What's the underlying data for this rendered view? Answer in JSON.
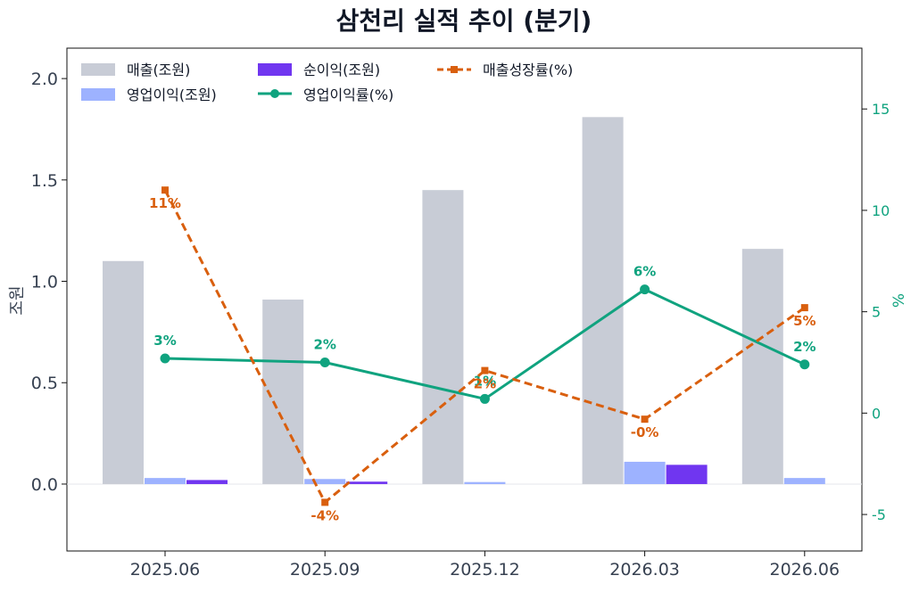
{
  "chart_data": {
    "type": "bar",
    "title": "삼천리 실적 추이 (분기)",
    "categories": [
      "2025.06",
      "2025.09",
      "2025.12",
      "2026.03",
      "2026.06"
    ],
    "ylabel": "조원",
    "ylabel_right": "%",
    "ylim": [
      -0.33,
      2.15
    ],
    "ylim_right": [
      -6.8,
      18.0
    ],
    "yticks": [
      "0.0",
      "0.5",
      "1.0",
      "1.5",
      "2.0"
    ],
    "yticks_right": [
      "-5",
      "0",
      "5",
      "10",
      "15"
    ],
    "legend_position": "top-left",
    "grid": false,
    "colors": {
      "revenue": "#c8ccd6",
      "operating_profit": "#9db2ff",
      "net_income": "#7036f0",
      "operating_margin": "#10a37f",
      "revenue_growth": "#d95f0e"
    },
    "series": [
      {
        "name": "매출(조원)",
        "type": "bar",
        "axis": "left",
        "values": [
          1.1,
          0.91,
          1.45,
          1.81,
          1.16
        ]
      },
      {
        "name": "영업이익(조원)",
        "type": "bar",
        "axis": "left",
        "values": [
          0.03,
          0.025,
          0.01,
          0.11,
          0.03
        ]
      },
      {
        "name": "순이익(조원)",
        "type": "bar",
        "axis": "left",
        "values": [
          0.02,
          0.012,
          0.0,
          0.095,
          0.0
        ]
      },
      {
        "name": "영업이익률(%)",
        "type": "line",
        "axis": "right",
        "values": [
          2.7,
          2.5,
          0.7,
          6.1,
          2.4
        ],
        "labels": [
          "3%",
          "2%",
          "1%",
          "6%",
          "2%"
        ]
      },
      {
        "name": "매출성장률(%)",
        "type": "line",
        "axis": "right",
        "style": "dashed",
        "values": [
          11.0,
          -4.4,
          2.1,
          -0.3,
          5.2
        ],
        "labels": [
          "11%",
          "-4%",
          "2%",
          "-0%",
          "5%"
        ]
      }
    ]
  }
}
